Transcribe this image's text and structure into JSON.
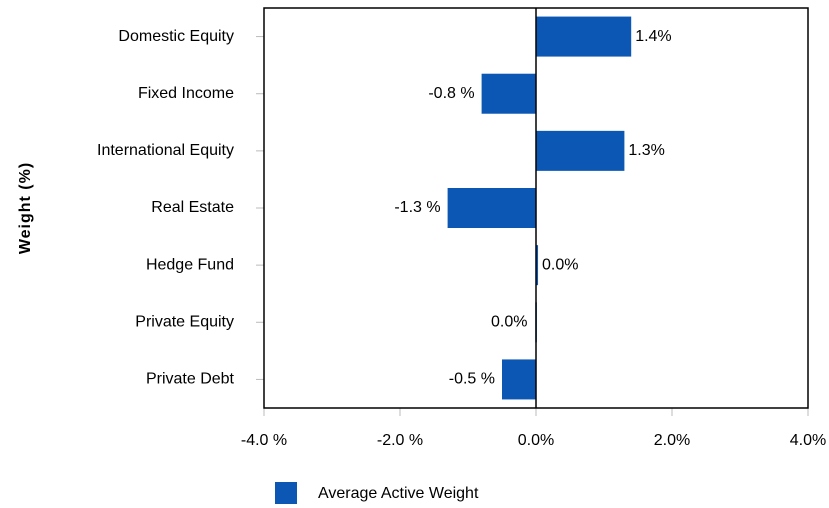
{
  "chart_data": {
    "type": "hbar",
    "y_label": "Weight (%)",
    "categories": [
      "Domestic Equity",
      "Fixed Income",
      "International Equity",
      "Real Estate",
      "Hedge Fund",
      "Private Equity",
      "Private Debt"
    ],
    "series": [
      {
        "name": "Average Active Weight",
        "color": "#0b57b3",
        "values": [
          1.4,
          -0.8,
          1.3,
          -1.3,
          0.03,
          -0.01,
          -0.5
        ],
        "value_labels": [
          "1.4%",
          "-0.8 %",
          "1.3%",
          "-1.3 %",
          "0.0%",
          "0.0%",
          "-0.5 %"
        ]
      }
    ],
    "xlim": [
      -4,
      4
    ],
    "xticks": [
      {
        "value": -4,
        "label": "-4.0 %"
      },
      {
        "value": -2,
        "label": "-2.0 %"
      },
      {
        "value": 0,
        "label": "0.0%"
      },
      {
        "value": 2,
        "label": "2.0%"
      },
      {
        "value": 4,
        "label": "4.0%"
      }
    ],
    "legend": "bottom"
  }
}
